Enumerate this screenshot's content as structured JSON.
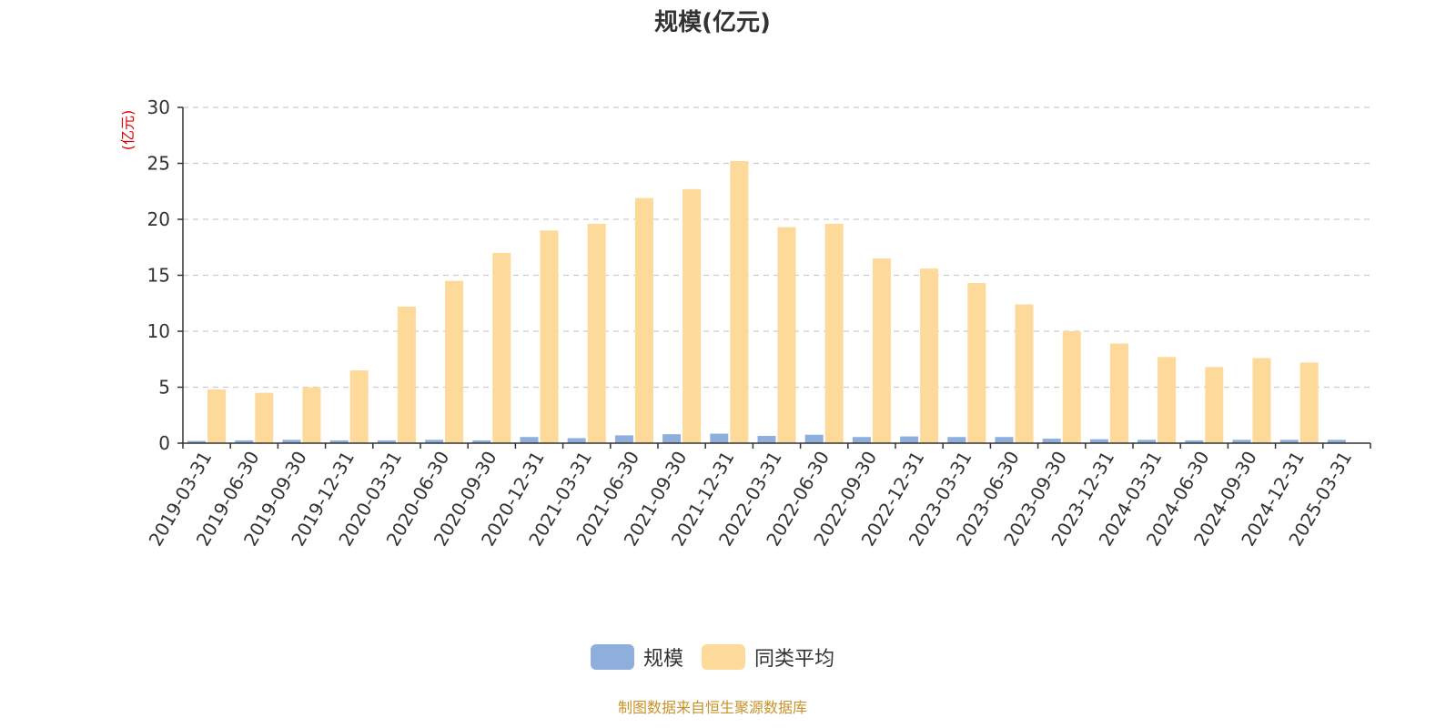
{
  "chart_data": {
    "type": "bar",
    "title": "规模(亿元)",
    "ylabel": "(亿元)",
    "xlabel": "",
    "ylim": [
      0,
      30
    ],
    "yticks": [
      0,
      5,
      10,
      15,
      20,
      25,
      30
    ],
    "grid": true,
    "legend_position": "bottom",
    "categories": [
      "2019-03-31",
      "2019-06-30",
      "2019-09-30",
      "2019-12-31",
      "2020-03-31",
      "2020-06-30",
      "2020-09-30",
      "2020-12-31",
      "2021-03-31",
      "2021-06-30",
      "2021-09-30",
      "2021-12-31",
      "2022-03-31",
      "2022-06-30",
      "2022-09-30",
      "2022-12-31",
      "2023-03-31",
      "2023-06-30",
      "2023-09-30",
      "2023-12-31",
      "2024-03-31",
      "2024-06-30",
      "2024-09-30",
      "2024-12-31",
      "2025-03-31"
    ],
    "series": [
      {
        "name": "规模",
        "color": "#8eaedb",
        "values": [
          0.2,
          0.25,
          0.3,
          0.25,
          0.25,
          0.3,
          0.25,
          0.55,
          0.45,
          0.7,
          0.8,
          0.85,
          0.65,
          0.75,
          0.55,
          0.6,
          0.55,
          0.55,
          0.4,
          0.35,
          0.3,
          0.25,
          0.3,
          0.3,
          0.3
        ]
      },
      {
        "name": "同类平均",
        "color": "#fdd99a",
        "values": [
          4.8,
          4.5,
          5.0,
          6.5,
          12.2,
          14.5,
          17.0,
          19.0,
          19.6,
          21.9,
          22.7,
          25.2,
          19.3,
          19.6,
          16.5,
          15.6,
          14.3,
          12.4,
          10.0,
          8.9,
          7.7,
          6.8,
          7.6,
          7.2,
          null
        ]
      }
    ]
  },
  "source_note": "制图数据来自恒生聚源数据库"
}
